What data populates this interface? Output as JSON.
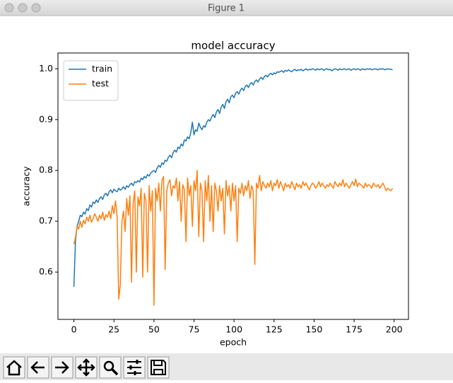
{
  "window": {
    "title": "Figure 1"
  },
  "chart_data": {
    "type": "line",
    "title": "model accuracy",
    "xlabel": "epoch",
    "ylabel": "accuracy",
    "legend": "upper left",
    "xlim": [
      -9.95,
      208.95
    ],
    "ylim": [
      0.507,
      1.031
    ],
    "xticks": [
      0,
      25,
      50,
      75,
      100,
      125,
      150,
      175,
      200
    ],
    "yticks": [
      0.6,
      0.7,
      0.8,
      0.9,
      {
        "value": 1,
        "label": "1.0"
      }
    ],
    "x": [
      0,
      1,
      2,
      3,
      4,
      5,
      6,
      7,
      8,
      9,
      10,
      11,
      12,
      13,
      14,
      15,
      16,
      17,
      18,
      19,
      20,
      21,
      22,
      23,
      24,
      25,
      26,
      27,
      28,
      29,
      30,
      31,
      32,
      33,
      34,
      35,
      36,
      37,
      38,
      39,
      40,
      41,
      42,
      43,
      44,
      45,
      46,
      47,
      48,
      49,
      50,
      51,
      52,
      53,
      54,
      55,
      56,
      57,
      58,
      59,
      60,
      61,
      62,
      63,
      64,
      65,
      66,
      67,
      68,
      69,
      70,
      71,
      72,
      73,
      74,
      75,
      76,
      77,
      78,
      79,
      80,
      81,
      82,
      83,
      84,
      85,
      86,
      87,
      88,
      89,
      90,
      91,
      92,
      93,
      94,
      95,
      96,
      97,
      98,
      99,
      100,
      101,
      102,
      103,
      104,
      105,
      106,
      107,
      108,
      109,
      110,
      111,
      112,
      113,
      114,
      115,
      116,
      117,
      118,
      119,
      120,
      121,
      122,
      123,
      124,
      125,
      126,
      127,
      128,
      129,
      130,
      131,
      132,
      133,
      134,
      135,
      136,
      137,
      138,
      139,
      140,
      141,
      142,
      143,
      144,
      145,
      146,
      147,
      148,
      149,
      150,
      151,
      152,
      153,
      154,
      155,
      156,
      157,
      158,
      159,
      160,
      161,
      162,
      163,
      164,
      165,
      166,
      167,
      168,
      169,
      170,
      171,
      172,
      173,
      174,
      175,
      176,
      177,
      178,
      179,
      180,
      181,
      182,
      183,
      184,
      185,
      186,
      187,
      188,
      189,
      190,
      191,
      192,
      193,
      194,
      195,
      196,
      197,
      198,
      199
    ],
    "series": [
      {
        "name": "train",
        "color": "#1f77b4",
        "values": [
          0.571,
          0.662,
          0.69,
          0.7,
          0.712,
          0.709,
          0.718,
          0.714,
          0.725,
          0.721,
          0.732,
          0.728,
          0.738,
          0.735,
          0.742,
          0.737,
          0.745,
          0.748,
          0.743,
          0.752,
          0.755,
          0.75,
          0.758,
          0.762,
          0.756,
          0.763,
          0.76,
          0.758,
          0.765,
          0.761,
          0.764,
          0.768,
          0.763,
          0.77,
          0.767,
          0.772,
          0.775,
          0.77,
          0.778,
          0.776,
          0.78,
          0.777,
          0.785,
          0.782,
          0.788,
          0.785,
          0.792,
          0.789,
          0.795,
          0.798,
          0.8,
          0.796,
          0.805,
          0.81,
          0.806,
          0.815,
          0.812,
          0.82,
          0.818,
          0.826,
          0.83,
          0.825,
          0.835,
          0.84,
          0.836,
          0.846,
          0.843,
          0.852,
          0.848,
          0.86,
          0.858,
          0.866,
          0.862,
          0.874,
          0.895,
          0.87,
          0.88,
          0.877,
          0.893,
          0.885,
          0.88,
          0.888,
          0.885,
          0.895,
          0.9,
          0.897,
          0.905,
          0.91,
          0.904,
          0.915,
          0.92,
          0.912,
          0.925,
          0.93,
          0.922,
          0.935,
          0.94,
          0.933,
          0.945,
          0.948,
          0.943,
          0.952,
          0.955,
          0.95,
          0.958,
          0.962,
          0.957,
          0.965,
          0.968,
          0.963,
          0.97,
          0.973,
          0.968,
          0.975,
          0.978,
          0.974,
          0.98,
          0.983,
          0.979,
          0.985,
          0.987,
          0.984,
          0.989,
          0.991,
          0.988,
          0.992,
          0.99,
          0.994,
          0.993,
          0.995,
          0.996,
          0.993,
          0.997,
          0.995,
          0.998,
          0.996,
          0.994,
          0.997,
          0.999,
          0.996,
          0.998,
          0.997,
          0.999,
          0.996,
          0.998,
          1.0,
          0.997,
          0.999,
          0.998,
          1.0,
          0.999,
          0.997,
          1.0,
          0.998,
          0.999,
          1.0,
          0.997,
          0.999,
          1.0,
          0.998,
          0.999,
          0.996,
          0.998,
          1.0,
          0.999,
          0.997,
          1.0,
          0.998,
          0.999,
          1.0,
          0.998,
          0.999,
          1.0,
          0.997,
          0.999,
          1.0,
          0.998,
          1.0,
          0.999,
          0.997,
          1.0,
          0.999,
          0.998,
          1.0,
          0.999,
          1.0,
          0.998,
          0.999,
          1.0,
          0.999,
          0.998,
          1.0,
          0.999,
          1.0,
          0.998,
          0.999,
          1.0,
          0.999,
          0.999,
          0.998
        ]
      },
      {
        "name": "test",
        "color": "#ff7f0e",
        "values": [
          0.655,
          0.668,
          0.69,
          0.685,
          0.7,
          0.688,
          0.702,
          0.695,
          0.708,
          0.7,
          0.712,
          0.698,
          0.705,
          0.715,
          0.708,
          0.7,
          0.712,
          0.705,
          0.718,
          0.702,
          0.713,
          0.708,
          0.72,
          0.705,
          0.731,
          0.715,
          0.74,
          0.71,
          0.547,
          0.575,
          0.7,
          0.72,
          0.68,
          0.745,
          0.712,
          0.75,
          0.58,
          0.735,
          0.76,
          0.6,
          0.748,
          0.73,
          0.765,
          0.59,
          0.755,
          0.74,
          0.6,
          0.77,
          0.72,
          0.76,
          0.535,
          0.765,
          0.74,
          0.775,
          0.72,
          0.78,
          0.788,
          0.605,
          0.76,
          0.775,
          0.782,
          0.75,
          0.77,
          0.765,
          0.785,
          0.74,
          0.778,
          0.7,
          0.772,
          0.762,
          0.66,
          0.785,
          0.75,
          0.77,
          0.69,
          0.78,
          0.76,
          0.8,
          0.67,
          0.775,
          0.76,
          0.66,
          0.78,
          0.74,
          0.79,
          0.7,
          0.77,
          0.68,
          0.775,
          0.76,
          0.72,
          0.77,
          0.74,
          0.765,
          0.675,
          0.78,
          0.75,
          0.77,
          0.72,
          0.775,
          0.74,
          0.77,
          0.66,
          0.765,
          0.755,
          0.775,
          0.75,
          0.77,
          0.76,
          0.78,
          0.745,
          0.77,
          0.76,
          0.615,
          0.775,
          0.765,
          0.79,
          0.76,
          0.778,
          0.77,
          0.765,
          0.775,
          0.768,
          0.78,
          0.76,
          0.775,
          0.77,
          0.782,
          0.765,
          0.778,
          0.77,
          0.76,
          0.775,
          0.768,
          0.772,
          0.765,
          0.778,
          0.77,
          0.762,
          0.775,
          0.768,
          0.772,
          0.765,
          0.778,
          0.77,
          0.775,
          0.768,
          0.762,
          0.77,
          0.775,
          0.772,
          0.765,
          0.77,
          0.778,
          0.768,
          0.775,
          0.77,
          0.765,
          0.772,
          0.768,
          0.775,
          0.77,
          0.765,
          0.778,
          0.772,
          0.768,
          0.775,
          0.77,
          0.782,
          0.768,
          0.775,
          0.77,
          0.765,
          0.772,
          0.778,
          0.77,
          0.783,
          0.768,
          0.775,
          0.772,
          0.77,
          0.765,
          0.775,
          0.768,
          0.772,
          0.77,
          0.765,
          0.775,
          0.77,
          0.768,
          0.772,
          0.765,
          0.77,
          0.775,
          0.768,
          0.76,
          0.765,
          0.762,
          0.76,
          0.765
        ]
      }
    ]
  }
}
